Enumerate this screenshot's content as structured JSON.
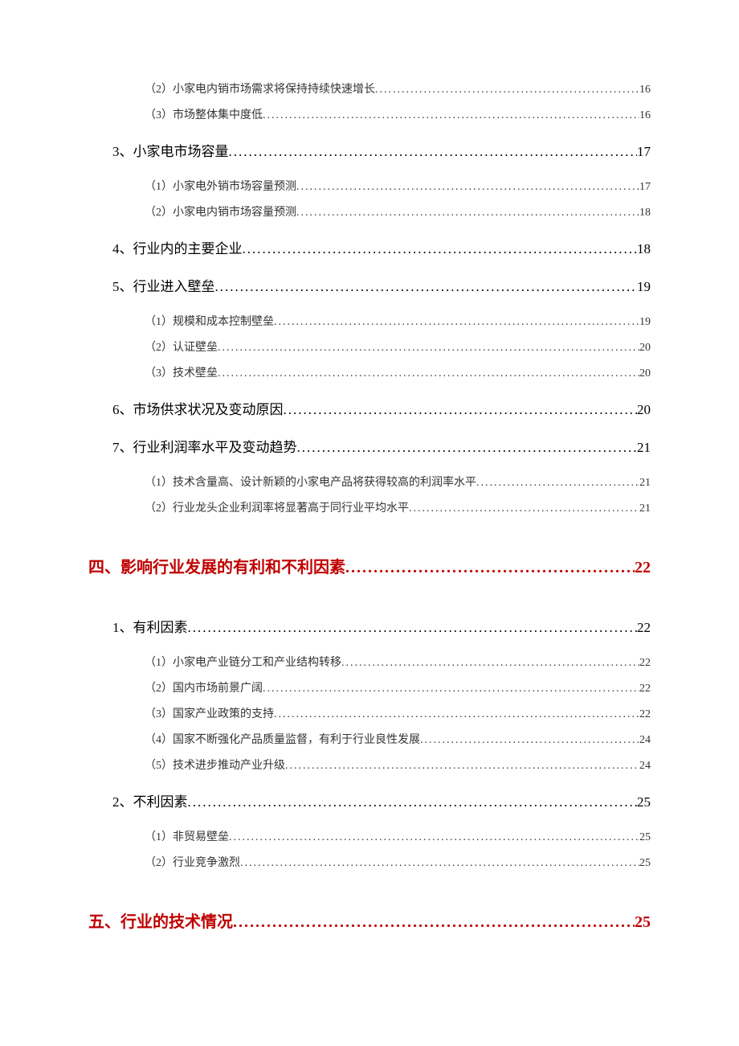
{
  "colors": {
    "heading": "#c00000",
    "text": "#000000",
    "subtext": "#333333",
    "background": "#ffffff"
  },
  "fonts": {
    "level1_size": 20,
    "level2_size": 17,
    "level3_size": 14
  },
  "toc": [
    {
      "level": 3,
      "label": "（2）小家电内销市场需求将保持持续快速增长",
      "page": "16"
    },
    {
      "level": 3,
      "label": "（3）市场整体集中度低",
      "page": "16"
    },
    {
      "level": 2,
      "label": "3、小家电市场容量 ",
      "page": "17"
    },
    {
      "level": 3,
      "label": "（1）小家电外销市场容量预测",
      "page": "17"
    },
    {
      "level": 3,
      "label": "（2）小家电内销市场容量预测",
      "page": "18"
    },
    {
      "level": 2,
      "label": "4、行业内的主要企业 ",
      "page": "18"
    },
    {
      "level": 2,
      "label": "5、行业进入壁垒 ",
      "page": "19"
    },
    {
      "level": 3,
      "label": "（1）规模和成本控制壁垒",
      "page": "19"
    },
    {
      "level": 3,
      "label": "（2）认证壁垒",
      "page": "20"
    },
    {
      "level": 3,
      "label": "（3）技术壁垒",
      "page": "20"
    },
    {
      "level": 2,
      "label": "6、市场供求状况及变动原因 ",
      "page": "20"
    },
    {
      "level": 2,
      "label": "7、行业利润率水平及变动趋势 ",
      "page": "21"
    },
    {
      "level": 3,
      "label": "（1）技术含量高、设计新颖的小家电产品将获得较高的利润率水平",
      "page": "21"
    },
    {
      "level": 3,
      "label": "（2）行业龙头企业利润率将显著高于同行业平均水平",
      "page": "21"
    },
    {
      "level": 1,
      "label": "四、影响行业发展的有利和不利因素 ",
      "page": "22"
    },
    {
      "level": 2,
      "label": "1、有利因素 ",
      "page": "22"
    },
    {
      "level": 3,
      "label": "（1）小家电产业链分工和产业结构转移",
      "page": "22"
    },
    {
      "level": 3,
      "label": "（2）国内市场前景广阔",
      "page": "22"
    },
    {
      "level": 3,
      "label": "（3）国家产业政策的支持",
      "page": "22"
    },
    {
      "level": 3,
      "label": "（4）国家不断强化产品质量监督，有利于行业良性发展",
      "page": "24"
    },
    {
      "level": 3,
      "label": "（5）技术进步推动产业升级",
      "page": "24"
    },
    {
      "level": 2,
      "label": "2、不利因素 ",
      "page": "25"
    },
    {
      "level": 3,
      "label": "（1）非贸易壁垒",
      "page": "25"
    },
    {
      "level": 3,
      "label": "（2）行业竞争激烈",
      "page": "25"
    },
    {
      "level": 1,
      "label": "五、行业的技术情况",
      "page": "25"
    }
  ]
}
